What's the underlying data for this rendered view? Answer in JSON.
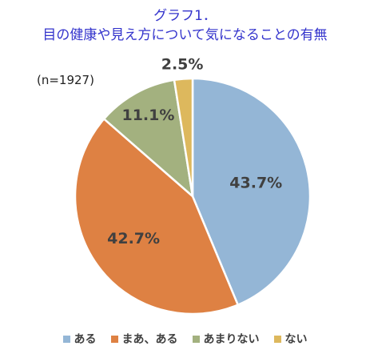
{
  "chart_data": {
    "type": "pie",
    "title_line1": "グラフ1．",
    "title_line2": "目の健康や見え方について気になることの有無",
    "sample_size": "(n=1927)",
    "categories": [
      "ある",
      "まあ、ある",
      "あまりない",
      "ない"
    ],
    "values": [
      43.7,
      42.7,
      11.1,
      2.5
    ],
    "labels": [
      "43.7%",
      "42.7%",
      "11.1%",
      "2.5%"
    ],
    "colors": [
      "#94b6d6",
      "#de8143",
      "#a3b17f",
      "#ddb85d"
    ],
    "legend_position": "bottom",
    "start": "top, clockwise"
  }
}
